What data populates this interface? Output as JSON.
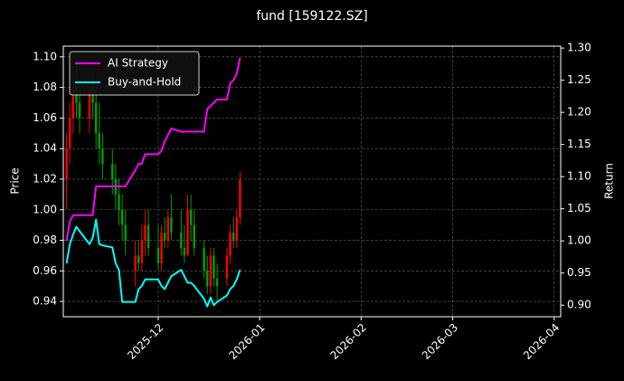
{
  "chart_data": {
    "type": "candlestick",
    "title": "fund [159122.SZ]",
    "ylabel": "Price",
    "y2label": "Return",
    "x": [
      "2025-11-03",
      "2025-11-04",
      "2025-11-05",
      "2025-11-06",
      "2025-11-07",
      "2025-11-10",
      "2025-11-11",
      "2025-11-12",
      "2025-11-13",
      "2025-11-14",
      "2025-11-17",
      "2025-11-18",
      "2025-11-19",
      "2025-11-20",
      "2025-11-21",
      "2025-11-24",
      "2025-11-25",
      "2025-11-26",
      "2025-11-27",
      "2025-11-28",
      "2025-12-01",
      "2025-12-02",
      "2025-12-03",
      "2025-12-04",
      "2025-12-05",
      "2025-12-08",
      "2025-12-09",
      "2025-12-10",
      "2025-12-11",
      "2025-12-12",
      "2025-12-15",
      "2025-12-16",
      "2025-12-17",
      "2025-12-18",
      "2025-12-19",
      "2025-12-22",
      "2025-12-23",
      "2025-12-24",
      "2025-12-25",
      "2025-12-26"
    ],
    "open": [
      1.02,
      1.04,
      1.06,
      1.08,
      1.07,
      1.06,
      1.08,
      1.07,
      1.05,
      1.04,
      1.03,
      1.02,
      1.01,
      1.0,
      0.99,
      0.96,
      0.97,
      0.965,
      0.98,
      0.99,
      0.975,
      0.965,
      0.985,
      0.98,
      0.995,
      0.985,
      0.975,
      0.97,
      1.0,
      0.99,
      0.975,
      0.96,
      0.95,
      0.97,
      0.955,
      0.955,
      0.97,
      0.985,
      0.98,
      0.995
    ],
    "high": [
      1.05,
      1.07,
      1.09,
      1.1,
      1.08,
      1.09,
      1.09,
      1.08,
      1.07,
      1.05,
      1.04,
      1.03,
      1.02,
      1.01,
      1.0,
      0.98,
      0.98,
      0.99,
      1.0,
      1.0,
      0.99,
      0.99,
      0.995,
      1.0,
      1.01,
      1.0,
      0.99,
      1.01,
      1.01,
      1.0,
      0.98,
      0.97,
      0.975,
      0.975,
      0.965,
      0.975,
      0.99,
      0.995,
      1.0,
      1.025
    ],
    "low": [
      1.0,
      1.03,
      1.05,
      1.06,
      1.05,
      1.05,
      1.06,
      1.04,
      1.03,
      1.02,
      1.01,
      1.0,
      0.99,
      0.98,
      0.97,
      0.95,
      0.96,
      0.96,
      0.97,
      0.97,
      0.96,
      0.96,
      0.975,
      0.975,
      0.98,
      0.97,
      0.965,
      0.97,
      0.98,
      0.97,
      0.955,
      0.945,
      0.945,
      0.95,
      0.94,
      0.95,
      0.965,
      0.975,
      0.975,
      0.99
    ],
    "close": [
      1.04,
      1.06,
      1.08,
      1.07,
      1.06,
      1.08,
      1.07,
      1.05,
      1.04,
      1.03,
      1.02,
      1.01,
      1.0,
      0.99,
      0.98,
      0.97,
      0.965,
      0.98,
      0.99,
      0.975,
      0.965,
      0.985,
      0.98,
      0.995,
      0.985,
      0.975,
      0.97,
      1.0,
      0.99,
      0.975,
      0.96,
      0.95,
      0.97,
      0.955,
      0.95,
      0.97,
      0.985,
      0.98,
      0.995,
      1.02
    ],
    "up_color": "#ff0000",
    "down_color": "#00a000",
    "series": [
      {
        "name": "AI Strategy",
        "color": "#ff00ff",
        "axis": "y2",
        "values": [
          1.0,
          1.03,
          1.04,
          1.04,
          1.04,
          1.04,
          1.04,
          1.085,
          1.085,
          1.085,
          1.085,
          1.085,
          1.085,
          1.085,
          1.085,
          1.11,
          1.12,
          1.12,
          1.135,
          1.135,
          1.135,
          1.14,
          1.155,
          1.165,
          1.175,
          1.17,
          1.17,
          1.17,
          1.17,
          1.17,
          1.17,
          1.205,
          1.21,
          1.215,
          1.22,
          1.22,
          1.245,
          1.25,
          1.26,
          1.285
        ]
      },
      {
        "name": "Buy-and-Hold",
        "color": "#00ffff",
        "axis": "y2",
        "values": [
          0.965,
          0.995,
          1.01,
          1.022,
          1.015,
          0.995,
          1.005,
          1.033,
          0.995,
          0.993,
          0.99,
          0.965,
          0.955,
          0.905,
          0.905,
          0.905,
          0.925,
          0.93,
          0.94,
          0.94,
          0.94,
          0.93,
          0.925,
          0.935,
          0.945,
          0.955,
          0.945,
          0.935,
          0.935,
          0.93,
          0.91,
          0.898,
          0.912,
          0.9,
          0.905,
          0.915,
          0.925,
          0.93,
          0.94,
          0.955
        ]
      }
    ],
    "xlim": [
      "2025-11-02",
      "2026-04-03"
    ],
    "xticks": [
      {
        "value": "2025-12-01",
        "label": "2025-12"
      },
      {
        "value": "2026-01-01",
        "label": "2026-01"
      },
      {
        "value": "2026-02-01",
        "label": "2026-02"
      },
      {
        "value": "2026-03-01",
        "label": "2026-03"
      },
      {
        "value": "2026-04-01",
        "label": "2026-04"
      }
    ],
    "ylim": [
      0.93,
      1.107
    ],
    "yticks": [
      {
        "value": 0.94,
        "label": "0.94"
      },
      {
        "value": 0.96,
        "label": "0.96"
      },
      {
        "value": 0.98,
        "label": "0.98"
      },
      {
        "value": 1.0,
        "label": "1.00"
      },
      {
        "value": 1.02,
        "label": "1.02"
      },
      {
        "value": 1.04,
        "label": "1.04"
      },
      {
        "value": 1.06,
        "label": "1.06"
      },
      {
        "value": 1.08,
        "label": "1.08"
      },
      {
        "value": 1.1,
        "label": "1.10"
      }
    ],
    "y2lim": [
      0.882,
      1.303
    ],
    "y2ticks": [
      {
        "value": 0.9,
        "label": "0.90"
      },
      {
        "value": 0.95,
        "label": "0.95"
      },
      {
        "value": 1.0,
        "label": "1.00"
      },
      {
        "value": 1.05,
        "label": "1.05"
      },
      {
        "value": 1.1,
        "label": "1.10"
      },
      {
        "value": 1.15,
        "label": "1.15"
      },
      {
        "value": 1.2,
        "label": "1.20"
      },
      {
        "value": 1.25,
        "label": "1.25"
      },
      {
        "value": 1.3,
        "label": "1.30"
      }
    ],
    "grid": true,
    "legend": "upper left"
  }
}
